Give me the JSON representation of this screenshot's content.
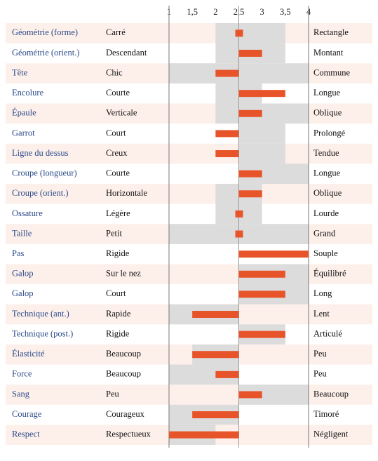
{
  "chart_data": {
    "type": "range-bar",
    "xlim": [
      1,
      4
    ],
    "xticks": [
      1,
      {
        "value": 1.5,
        "label": "1,5"
      },
      2,
      {
        "value": 2.5,
        "label": "2,5"
      },
      3,
      {
        "value": 3.5,
        "label": "3,5"
      },
      4
    ],
    "categories": [
      "Géométrie (forme)",
      "Géométrie (orient.)",
      "Tête",
      "Encolure",
      "Épaule",
      "Garrot",
      "Ligne du dessus",
      "Croupe (longueur)",
      "Croupe (orient.)",
      "Ossature",
      "Taille",
      "Pas",
      "Galop",
      "Galop",
      "Technique (ant.)",
      "Technique (post.)",
      "Élasticité",
      "Force",
      "Sang",
      "Courage",
      "Respect"
    ],
    "left_labels": [
      "Carré",
      "Descendant",
      "Chic",
      "Courte",
      "Verticale",
      "Court",
      "Creux",
      "Courte",
      "Horizontale",
      "Légère",
      "Petit",
      "Rigide",
      "Sur le nez",
      "Court",
      "Rapide",
      "Rigide",
      "Beaucoup",
      "Beaucoup",
      "Peu",
      "Courageux",
      "Respectueux"
    ],
    "right_labels": [
      "Rectangle",
      "Montant",
      "Commune",
      "Longue",
      "Oblique",
      "Prolongé",
      "Tendue",
      "Longue",
      "Oblique",
      "Lourde",
      "Grand",
      "Souple",
      "Équilibré",
      "Long",
      "Lent",
      "Articulé",
      "Peu",
      "Peu",
      "Beaucoup",
      "Timoré",
      "Négligent"
    ],
    "values": [
      2.5,
      3,
      2,
      3.5,
      3,
      2,
      2,
      3,
      3,
      2.5,
      2.5,
      4,
      3.5,
      3.5,
      1.5,
      3.5,
      1.5,
      2,
      3,
      1.5,
      1
    ],
    "ranges": [
      [
        2,
        3.5
      ],
      [
        2,
        3.5
      ],
      [
        1,
        4
      ],
      [
        2,
        3
      ],
      [
        2,
        4
      ],
      [
        2.5,
        3.5
      ],
      [
        2.5,
        3.5
      ],
      [
        2.5,
        4
      ],
      [
        2,
        3
      ],
      [
        2,
        3
      ],
      [
        1,
        4
      ],
      null,
      [
        2.5,
        4
      ],
      [
        2.5,
        4
      ],
      [
        1,
        2.5
      ],
      [
        2.5,
        3.5
      ],
      [
        1.5,
        2.5
      ],
      [
        1,
        2.5
      ],
      [
        2.5,
        4
      ],
      [
        1,
        2.5
      ],
      [
        1,
        2
      ]
    ],
    "color": "#e8542a",
    "range_color": "#dcdcdc",
    "category_color": "#2c4a8a"
  }
}
